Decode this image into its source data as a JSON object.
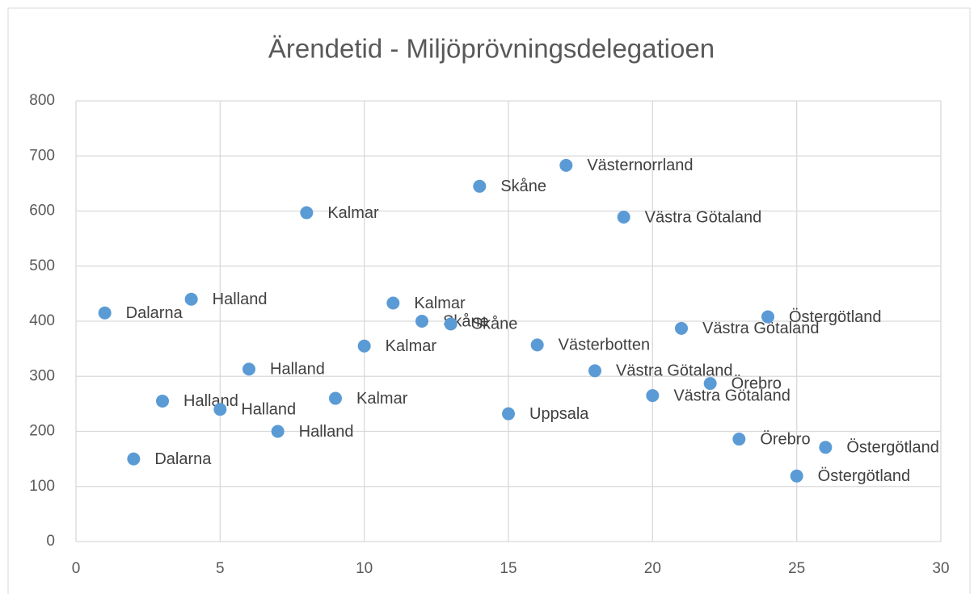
{
  "chart_data": {
    "type": "scatter",
    "title": "Ärendetid - Miljöprövningsdelegatioen",
    "x": [
      1,
      2,
      3,
      4,
      5,
      6,
      7,
      8,
      9,
      10,
      11,
      12,
      13,
      14,
      15,
      16,
      17,
      18,
      19,
      20,
      21,
      22,
      23,
      24,
      25,
      26
    ],
    "values": [
      415,
      150,
      255,
      440,
      240,
      313,
      200,
      597,
      260,
      355,
      433,
      400,
      395,
      645,
      232,
      357,
      683,
      310,
      589,
      265,
      387,
      287,
      186,
      408,
      119,
      171
    ],
    "labels": [
      "Dalarna",
      "Dalarna",
      "Halland",
      "Halland",
      "Halland",
      "Halland",
      "Halland",
      "Kalmar",
      "Kalmar",
      "Kalmar",
      "Kalmar",
      "Skåne",
      "Skåne",
      "Skåne",
      "Uppsala",
      "Västerbotten",
      "Västernorrland",
      "Västra Götaland",
      "Västra Götaland",
      "Västra Götaland",
      "Västra Götaland",
      "Örebro",
      "Örebro",
      "Östergötland",
      "Östergötland",
      "Östergötland"
    ],
    "color": "#5b9bd5",
    "xlim": [
      0,
      30
    ],
    "xticks": [
      0,
      5,
      10,
      15,
      20,
      25,
      30
    ],
    "ylim": [
      0,
      800
    ],
    "yticks": [
      0,
      100,
      200,
      300,
      400,
      500,
      600,
      700,
      800
    ],
    "grid": true
  }
}
